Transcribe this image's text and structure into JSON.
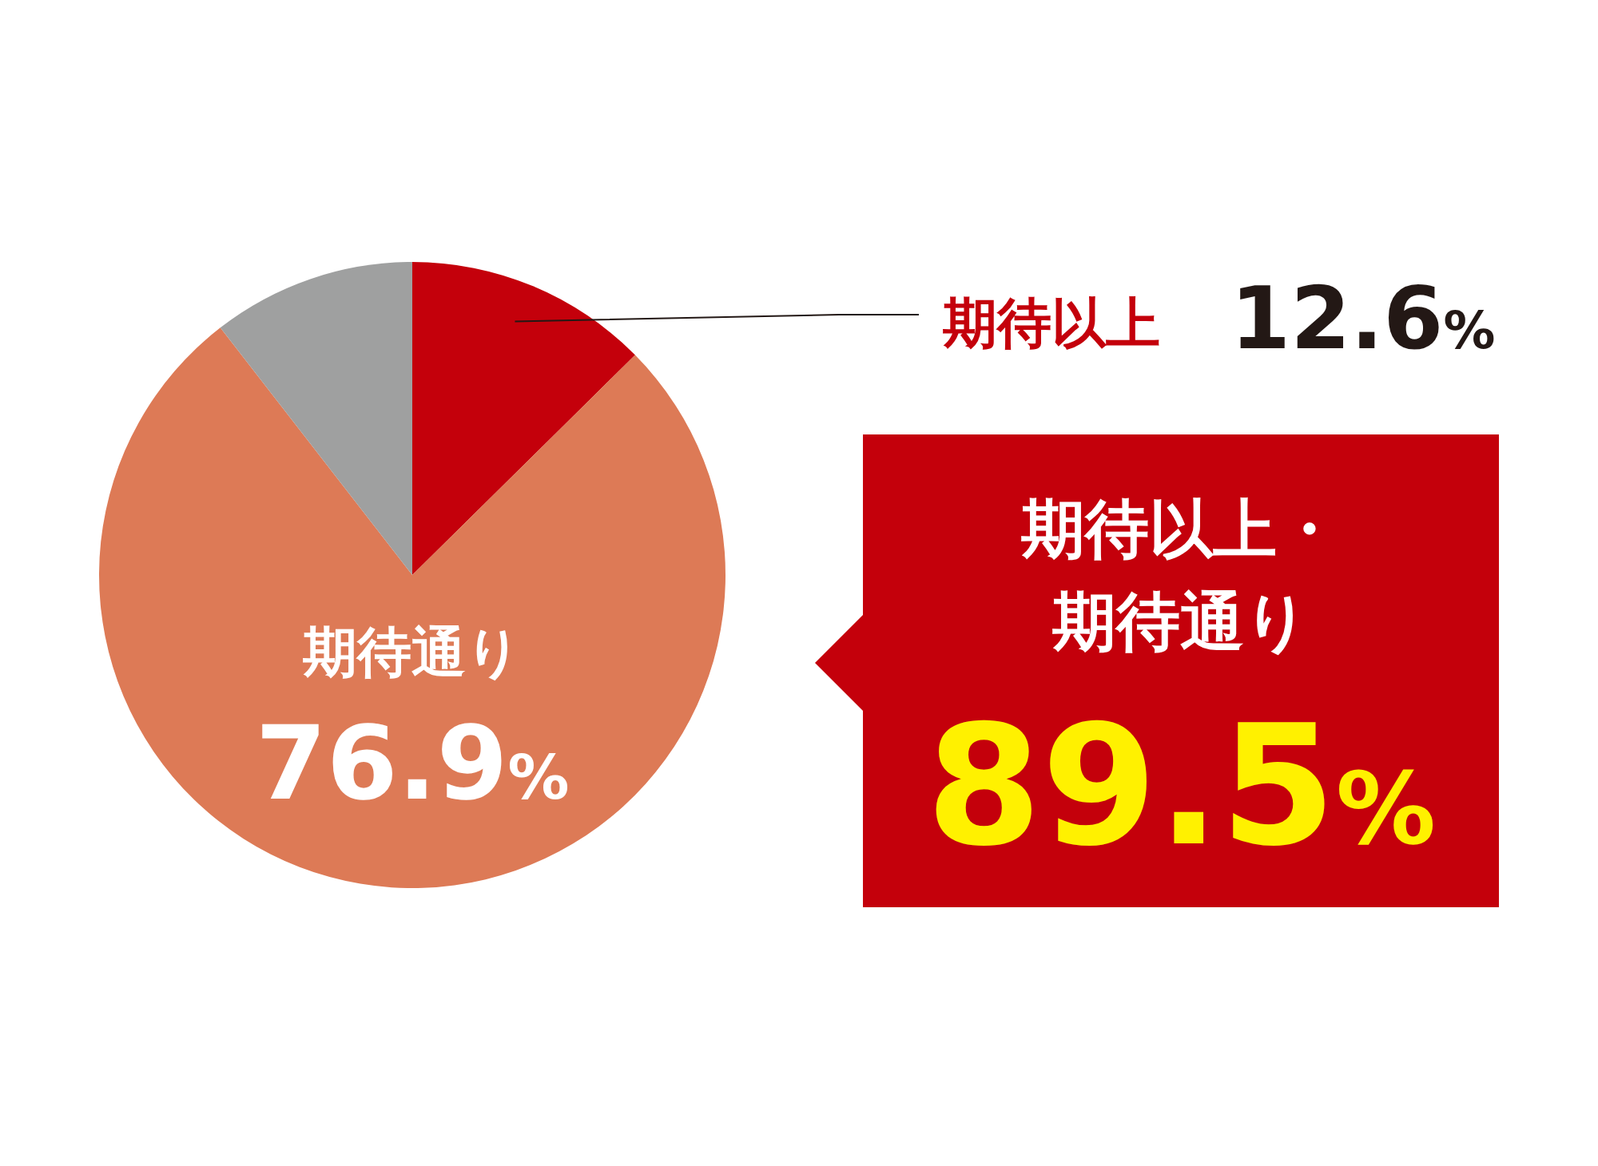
{
  "chart_data": {
    "type": "pie",
    "categories": [
      "期待以上",
      "期待通り",
      null
    ],
    "values": [
      12.6,
      76.9,
      10.5
    ],
    "colors": [
      "#c4000b",
      "#dd7a56",
      "#9fa0a0"
    ],
    "value_labels": [
      "12.6%",
      "76.9%",
      null
    ],
    "annotations": [
      "期待以上・",
      "期待通り",
      "89.5%"
    ]
  }
}
